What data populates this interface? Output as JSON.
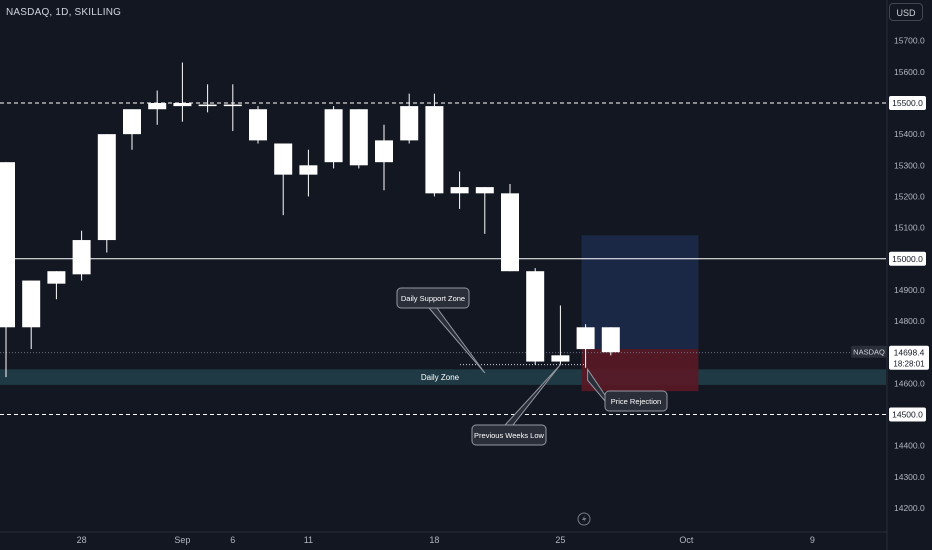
{
  "header": {
    "symbol_info": "NASDAQ, 1D, SKILLING",
    "currency_button": "USD"
  },
  "colors": {
    "background": "#131722",
    "candle_body": "#ffffff",
    "axis_text": "#b2b5be",
    "zone_fill": "#1f3a44",
    "target_zone": "#1c2a4a",
    "stop_zone": "#5a1a26",
    "callout_fill": "#2a2e39",
    "callout_border": "#9598a1",
    "price_tag": "#ffffff"
  },
  "chart_data": {
    "type": "candlestick",
    "title": "",
    "y_axis": {
      "ticks": [
        14200,
        14300,
        14400,
        14500,
        14600,
        14700,
        14800,
        14900,
        15000,
        15100,
        15200,
        15300,
        15400,
        15500,
        15600,
        15700
      ],
      "tick_labels": [
        "14200.0",
        "14300.0",
        "14400.0",
        "14500.0",
        "14600.0",
        "14700.0",
        "14800.0",
        "14900.0",
        "15000.0",
        "15100.0",
        "15200.0",
        "15300.0",
        "15400.0",
        "15500.0",
        "15600.0",
        "15700.0"
      ],
      "range": [
        14160,
        15810
      ]
    },
    "x_axis": {
      "labels": [
        {
          "text": "28",
          "date": "2023-08-28"
        },
        {
          "text": "Sep",
          "date": "2023-09-01"
        },
        {
          "text": "6",
          "date": "2023-09-06"
        },
        {
          "text": "11",
          "date": "2023-09-11"
        },
        {
          "text": "18",
          "date": "2023-09-18"
        },
        {
          "text": "25",
          "date": "2023-09-25"
        },
        {
          "text": "Oct",
          "date": "2023-10-02"
        },
        {
          "text": "9",
          "date": "2023-10-09"
        }
      ]
    },
    "candles": [
      {
        "date": "2023-08-23",
        "open": 14780,
        "high": 15310,
        "low": 14620,
        "close": 15310
      },
      {
        "date": "2023-08-24",
        "open": 14930,
        "high": 14930,
        "low": 14710,
        "close": 14780
      },
      {
        "date": "2023-08-25",
        "open": 14960,
        "high": 14960,
        "low": 14870,
        "close": 14920
      },
      {
        "date": "2023-08-28",
        "open": 14950,
        "high": 15090,
        "low": 14930,
        "close": 15060
      },
      {
        "date": "2023-08-29",
        "open": 15060,
        "high": 15400,
        "low": 15020,
        "close": 15400
      },
      {
        "date": "2023-08-30",
        "open": 15400,
        "high": 15480,
        "low": 15350,
        "close": 15480
      },
      {
        "date": "2023-08-31",
        "open": 15480,
        "high": 15540,
        "low": 15430,
        "close": 15500
      },
      {
        "date": "2023-09-01",
        "open": 15490,
        "high": 15630,
        "low": 15440,
        "close": 15500
      },
      {
        "date": "2023-09-05",
        "open": 15490,
        "high": 15560,
        "low": 15470,
        "close": 15495
      },
      {
        "date": "2023-09-06",
        "open": 15495,
        "high": 15560,
        "low": 15410,
        "close": 15490
      },
      {
        "date": "2023-09-07",
        "open": 15480,
        "high": 15490,
        "low": 15370,
        "close": 15380
      },
      {
        "date": "2023-09-08",
        "open": 15370,
        "high": 15370,
        "low": 15140,
        "close": 15270
      },
      {
        "date": "2023-09-11",
        "open": 15270,
        "high": 15350,
        "low": 15200,
        "close": 15300
      },
      {
        "date": "2023-09-12",
        "open": 15480,
        "high": 15490,
        "low": 15290,
        "close": 15310
      },
      {
        "date": "2023-09-13",
        "open": 15480,
        "high": 15480,
        "low": 15290,
        "close": 15300
      },
      {
        "date": "2023-09-14",
        "open": 15380,
        "high": 15430,
        "low": 15220,
        "close": 15310
      },
      {
        "date": "2023-09-15",
        "open": 15490,
        "high": 15530,
        "low": 15370,
        "close": 15380
      },
      {
        "date": "2023-09-18",
        "open": 15490,
        "high": 15530,
        "low": 15200,
        "close": 15210
      },
      {
        "date": "2023-09-19",
        "open": 15230,
        "high": 15280,
        "low": 15160,
        "close": 15210
      },
      {
        "date": "2023-09-20",
        "open": 15230,
        "high": 15230,
        "low": 15080,
        "close": 15210
      },
      {
        "date": "2023-09-21",
        "open": 15210,
        "high": 15240,
        "low": 14960,
        "close": 14960
      },
      {
        "date": "2023-09-22",
        "open": 14960,
        "high": 14970,
        "low": 14660,
        "close": 14670
      },
      {
        "date": "2023-09-25",
        "open": 14670,
        "high": 14850,
        "low": 14660,
        "close": 14690
      },
      {
        "date": "2023-09-26",
        "open": 14710,
        "high": 14790,
        "low": 14650,
        "close": 14780
      },
      {
        "date": "2023-09-27",
        "open": 14700,
        "high": 14780,
        "low": 14690,
        "close": 14780
      }
    ],
    "horizontal_lines": [
      {
        "price": 15500,
        "style": "dashed"
      },
      {
        "price": 15000,
        "style": "solid"
      },
      {
        "price": 14500,
        "style": "dashed"
      }
    ],
    "current_price": {
      "label": "NASDAQ",
      "value": "14698.4",
      "countdown": "18:28:01",
      "price": 14698.4
    },
    "daily_zone": {
      "label": "Daily Zone",
      "top": 14645,
      "bottom": 14595
    },
    "position_tool": {
      "start_date": "2023-09-26",
      "end_date": "2023-10-02",
      "target": 15075,
      "entry": 14710,
      "stop": 14575
    },
    "annotations": [
      {
        "text": "Daily Support Zone",
        "anchor_date": "2023-09-20",
        "anchor_price": 14640
      },
      {
        "text": "Previous Weeks Low",
        "anchor_date": "2023-09-25",
        "anchor_price": 14660
      },
      {
        "text": "Price Rejection",
        "anchor_date": "2023-09-26",
        "anchor_price": 14640
      }
    ]
  }
}
